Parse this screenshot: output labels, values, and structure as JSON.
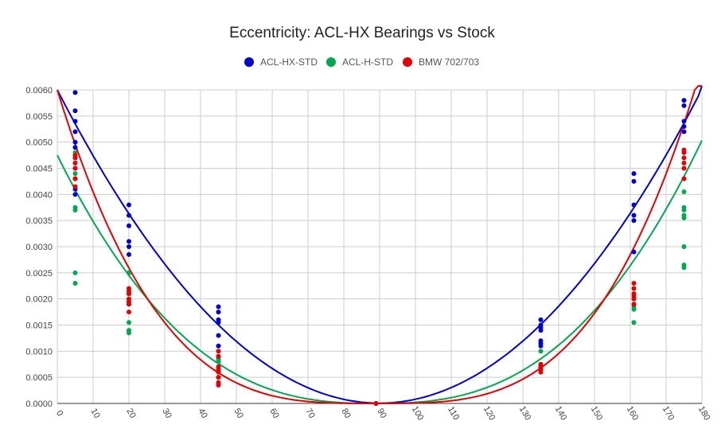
{
  "chart_data": {
    "type": "scatter",
    "title": "Eccentricity: ACL-HX Bearings vs Stock",
    "xlabel": "",
    "ylabel": "",
    "xlim": [
      0,
      180
    ],
    "ylim": [
      0,
      0.006
    ],
    "x_ticks": [
      "0",
      "10",
      "20",
      "30",
      "40",
      "50",
      "60",
      "70",
      "80",
      "90",
      "100",
      "110",
      "120",
      "130",
      "140",
      "150",
      "160",
      "170",
      "180"
    ],
    "y_ticks": [
      "0.0000",
      "0.0005",
      "0.0010",
      "0.0015",
      "0.0020",
      "0.0025",
      "0.0030",
      "0.0035",
      "0.0040",
      "0.0045",
      "0.0050",
      "0.0055",
      "0.0060"
    ],
    "grid": true,
    "legend_position": "top",
    "series": [
      {
        "name": "ACL-HX-STD",
        "color": "#0000cc",
        "points": [
          [
            5,
            0.00595
          ],
          [
            5,
            0.0056
          ],
          [
            5,
            0.0054
          ],
          [
            5,
            0.0052
          ],
          [
            5,
            0.005
          ],
          [
            5,
            0.0049
          ],
          [
            5,
            0.0047
          ],
          [
            5,
            0.0045
          ],
          [
            5,
            0.0043
          ],
          [
            5,
            0.0041
          ],
          [
            5,
            0.004
          ],
          [
            20,
            0.0038
          ],
          [
            20,
            0.0036
          ],
          [
            20,
            0.0034
          ],
          [
            20,
            0.0031
          ],
          [
            20,
            0.003
          ],
          [
            20,
            0.00285
          ],
          [
            20,
            0.0025
          ],
          [
            45,
            0.00185
          ],
          [
            45,
            0.00175
          ],
          [
            45,
            0.0016
          ],
          [
            45,
            0.00155
          ],
          [
            45,
            0.0013
          ],
          [
            45,
            0.0011
          ],
          [
            45,
            0.0009
          ],
          [
            45,
            0.0008
          ],
          [
            89,
            0.0
          ],
          [
            135,
            0.0016
          ],
          [
            135,
            0.0015
          ],
          [
            135,
            0.00145
          ],
          [
            135,
            0.0014
          ],
          [
            135,
            0.0012
          ],
          [
            135,
            0.00115
          ],
          [
            135,
            0.0011
          ],
          [
            161,
            0.0044
          ],
          [
            161,
            0.00425
          ],
          [
            161,
            0.0038
          ],
          [
            161,
            0.0036
          ],
          [
            161,
            0.0035
          ],
          [
            161,
            0.0029
          ],
          [
            175,
            0.0058
          ],
          [
            175,
            0.0057
          ],
          [
            175,
            0.0054
          ],
          [
            175,
            0.0053
          ],
          [
            175,
            0.0052
          ]
        ],
        "trend": {
          "type": "polynomial",
          "coefficients": [
            0.006,
            -0.000133,
            7.41e-07
          ]
        }
      },
      {
        "name": "ACL-H-STD",
        "color": "#00a651",
        "points": [
          [
            5,
            0.0048
          ],
          [
            5,
            0.0046
          ],
          [
            5,
            0.0044
          ],
          [
            5,
            0.0043
          ],
          [
            5,
            0.0037
          ],
          [
            5,
            0.00375
          ],
          [
            5,
            0.0025
          ],
          [
            5,
            0.0023
          ],
          [
            20,
            0.0025
          ],
          [
            20,
            0.0021
          ],
          [
            20,
            0.0019
          ],
          [
            20,
            0.00155
          ],
          [
            20,
            0.0014
          ],
          [
            20,
            0.00135
          ],
          [
            45,
            0.0009
          ],
          [
            45,
            0.00085
          ],
          [
            45,
            0.0008
          ],
          [
            45,
            0.0007
          ],
          [
            45,
            0.00065
          ],
          [
            45,
            0.0006
          ],
          [
            45,
            0.0005
          ],
          [
            89,
            0.0
          ],
          [
            135,
            0.001
          ],
          [
            135,
            0.0007
          ],
          [
            135,
            0.00065
          ],
          [
            135,
            0.0006
          ],
          [
            161,
            0.0022
          ],
          [
            161,
            0.0021
          ],
          [
            161,
            0.002
          ],
          [
            161,
            0.0019
          ],
          [
            161,
            0.00185
          ],
          [
            161,
            0.0018
          ],
          [
            161,
            0.00155
          ],
          [
            175,
            0.00405
          ],
          [
            175,
            0.00375
          ],
          [
            175,
            0.0037
          ],
          [
            175,
            0.0036
          ],
          [
            175,
            0.00355
          ],
          [
            175,
            0.003
          ],
          [
            175,
            0.00265
          ],
          [
            175,
            0.0026
          ]
        ],
        "trend": {
          "type": "power-like",
          "description": "fitted curve"
        }
      },
      {
        "name": "BMW 702/703",
        "color": "#e00000",
        "points": [
          [
            5,
            0.00475
          ],
          [
            5,
            0.0047
          ],
          [
            5,
            0.0046
          ],
          [
            5,
            0.0045
          ],
          [
            5,
            0.0043
          ],
          [
            5,
            0.00415
          ],
          [
            20,
            0.0022
          ],
          [
            20,
            0.00215
          ],
          [
            20,
            0.0021
          ],
          [
            20,
            0.002
          ],
          [
            20,
            0.00195
          ],
          [
            20,
            0.0019
          ],
          [
            20,
            0.00175
          ],
          [
            45,
            0.001
          ],
          [
            45,
            0.0009
          ],
          [
            45,
            0.0007
          ],
          [
            45,
            0.00065
          ],
          [
            45,
            0.0006
          ],
          [
            45,
            0.0005
          ],
          [
            45,
            0.0004
          ],
          [
            45,
            0.00035
          ],
          [
            89,
            0.0
          ],
          [
            135,
            0.00075
          ],
          [
            135,
            0.0007
          ],
          [
            135,
            0.00068
          ],
          [
            135,
            0.00065
          ],
          [
            135,
            0.0006
          ],
          [
            161,
            0.0023
          ],
          [
            161,
            0.0022
          ],
          [
            161,
            0.0021
          ],
          [
            161,
            0.00205
          ],
          [
            161,
            0.002
          ],
          [
            161,
            0.0019
          ],
          [
            175,
            0.00485
          ],
          [
            175,
            0.0048
          ],
          [
            175,
            0.0047
          ],
          [
            175,
            0.0046
          ],
          [
            175,
            0.0045
          ],
          [
            175,
            0.0043
          ]
        ],
        "trend": {
          "type": "power-like",
          "description": "fitted curve"
        }
      }
    ]
  }
}
